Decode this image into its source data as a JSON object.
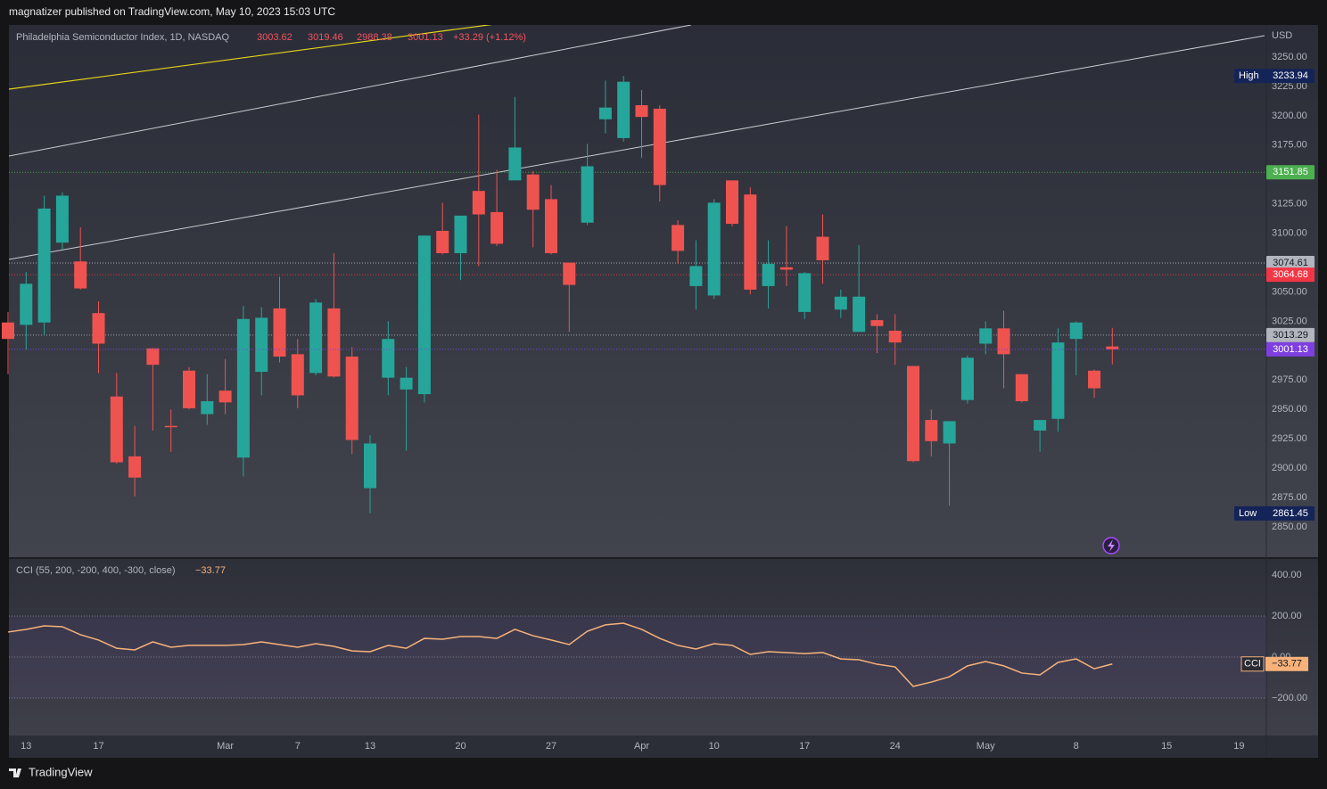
{
  "header": {
    "text": "magnatizer published on TradingView.com, May 10, 2023 15:03 UTC"
  },
  "chart_data": [
    {
      "type": "candlestick",
      "title": "Philadelphia Semiconductor Index, 1D, NASDAQ",
      "change_label": "+33.29 (+1.12%)",
      "currency": "USD",
      "categories": [
        null,
        "13",
        null,
        null,
        null,
        "17",
        null,
        null,
        null,
        null,
        null,
        null,
        "Mar",
        null,
        null,
        null,
        "7",
        null,
        null,
        null,
        "13",
        null,
        null,
        null,
        null,
        "20",
        null,
        null,
        null,
        null,
        "27",
        null,
        null,
        null,
        null,
        "Apr",
        null,
        null,
        null,
        "10",
        null,
        null,
        null,
        null,
        "17",
        null,
        null,
        null,
        null,
        "24",
        null,
        null,
        null,
        null,
        "May",
        null,
        null,
        null,
        null,
        "8",
        null,
        null,
        null,
        null,
        "15",
        null,
        null,
        null,
        "19"
      ],
      "open": [
        3024,
        3022,
        3024,
        3092,
        3076,
        3032,
        2961,
        2910,
        3002,
        2936,
        2983,
        2946,
        2966,
        2909,
        2982,
        3036,
        2997,
        2981,
        3036,
        2995,
        2883,
        2977,
        2967,
        2963,
        3102,
        3083,
        3136,
        3118,
        3145,
        3150,
        3129,
        3075,
        3109,
        3197,
        3181,
        3209,
        3206,
        3107,
        3055,
        3047,
        3145,
        3133,
        3055,
        3071,
        3033,
        3097,
        3035,
        3016,
        3026,
        3017,
        2987,
        2941,
        2921,
        2958,
        3006,
        3019,
        2980,
        2932,
        2942,
        3010,
        2983,
        3003.62,
        null,
        null,
        null,
        null,
        null,
        null,
        null
      ],
      "high": [
        3033,
        3067,
        3132,
        3135,
        3105,
        3042,
        2981,
        2936,
        3002,
        2950,
        2986,
        2980,
        2993,
        3038,
        3037,
        3063,
        3010,
        3044,
        3083,
        3003,
        2928,
        3025,
        2986,
        3098,
        3126,
        3115,
        3201,
        3154,
        3216,
        3153,
        3141,
        3075,
        3176,
        3230,
        3233.94,
        3222,
        3209,
        3111,
        3094,
        3129,
        3145,
        3139,
        3094,
        3106,
        3067,
        3116,
        3052,
        3090,
        3031,
        3031,
        2987,
        2950,
        2940,
        2996,
        3025,
        3034,
        2980,
        2941,
        3019,
        3025,
        2984,
        3019.46,
        null,
        null,
        null,
        null,
        null,
        null,
        null
      ],
      "low": [
        2980,
        3001,
        3013,
        3086,
        3052,
        2981,
        2904,
        2876,
        2932,
        2914,
        2950,
        2937,
        2946,
        2893,
        2962,
        2990,
        2951,
        2979,
        2977,
        2912,
        2861.45,
        2962,
        2915,
        2956,
        3082,
        3060,
        3072,
        3089,
        3145,
        3088,
        3082,
        3016,
        3107,
        3185,
        3178,
        3164,
        3127,
        3074,
        3035,
        3044,
        3106,
        3048,
        3036,
        3055,
        3027,
        3057,
        3028,
        3016,
        2998,
        2988,
        2905,
        2910,
        2868,
        2955,
        2997,
        2968,
        2956,
        2914,
        2931,
        2979,
        2960,
        2988.38,
        null,
        null,
        null,
        null,
        null,
        null,
        null
      ],
      "close": [
        3010,
        3057,
        3121,
        3132,
        3053,
        3006,
        2905,
        2892,
        2988,
        2935,
        2951,
        2957,
        2956,
        3027,
        3028,
        2995,
        2962,
        3041,
        2978,
        2924,
        2921,
        3010,
        2977,
        3098,
        3083,
        3115,
        3116,
        3091,
        3173,
        3120,
        3083,
        3056,
        3157,
        3207,
        3229,
        3199,
        3141,
        3085,
        3072,
        3126,
        3108,
        3052,
        3074,
        3069,
        3066,
        3077,
        3046,
        3046,
        3021,
        3007,
        2906,
        2923,
        2940,
        2994,
        3019,
        2997,
        2957,
        2941,
        3007,
        3024,
        2968,
        3001.13,
        null,
        null,
        null,
        null,
        null,
        null,
        null
      ],
      "up_color": "#26a69a",
      "down_color": "#ef5350",
      "high_label": "High",
      "low_label": "Low",
      "last_color": "#7e3fe0",
      "levels": [
        {
          "value": 3151.85,
          "color": "#4caf50",
          "text_color": "#ffffff"
        },
        {
          "value": 3074.61,
          "color": "#b2b5be",
          "text_color": "#131722"
        },
        {
          "value": 3064.68,
          "color": "#f23645",
          "text_color": "#ffffff"
        },
        {
          "value": 3013.29,
          "color": "#b2b5be",
          "text_color": "#131722"
        }
      ],
      "ylim": [
        2824.2,
        3277.3
      ],
      "yticks": [
        {
          "value": 3250,
          "label": "3250.00"
        },
        {
          "value": 3225,
          "label": "3225.00"
        },
        {
          "value": 3200,
          "label": "3200.00"
        },
        {
          "value": 3175,
          "label": "3175.00"
        },
        {
          "value": 3150,
          "label": "3150.00"
        },
        {
          "value": 3125,
          "label": "3125.00"
        },
        {
          "value": 3100,
          "label": "3100.00"
        },
        {
          "value": 3075,
          "label": "3075.00"
        },
        {
          "value": 3050,
          "label": "3050.00"
        },
        {
          "value": 3025,
          "label": "3025.00"
        },
        {
          "value": 3000,
          "label": "3000.00"
        },
        {
          "value": 2975,
          "label": "2975.00"
        },
        {
          "value": 2950,
          "label": "2950.00"
        },
        {
          "value": 2925,
          "label": "2925.00"
        },
        {
          "value": 2900,
          "label": "2900.00"
        },
        {
          "value": 2875,
          "label": "2875.00"
        },
        {
          "value": 2850,
          "label": "2850.00"
        }
      ],
      "grid": false
    },
    {
      "type": "line",
      "title": "CCI (55, 200, -200, 400, -300, close)",
      "name": "CCI",
      "color": "#f7b27a",
      "values": [
        122,
        135,
        152,
        148,
        109,
        83,
        43,
        35,
        74,
        48,
        57,
        57,
        57,
        61,
        74,
        61,
        48,
        65,
        52,
        30,
        26,
        57,
        43,
        91,
        87,
        100,
        100,
        91,
        135,
        104,
        83,
        61,
        126,
        157,
        165,
        135,
        91,
        57,
        39,
        65,
        57,
        13,
        26,
        22,
        17,
        22,
        -9,
        -13,
        -35,
        -48,
        -143,
        -122,
        -96,
        -43,
        -22,
        -43,
        -78,
        -87,
        -26,
        -9,
        -57,
        -33.77,
        null,
        null,
        null,
        null,
        null,
        null,
        null
      ],
      "value_labels": [
        null,
        null,
        null,
        null,
        null,
        null,
        null,
        null,
        null,
        null,
        null,
        null,
        null,
        null,
        null,
        null,
        null,
        null,
        null,
        null,
        null,
        null,
        null,
        null,
        null,
        null,
        null,
        null,
        null,
        null,
        null,
        null,
        null,
        null,
        null,
        null,
        null,
        null,
        null,
        null,
        null,
        null,
        null,
        null,
        null,
        null,
        null,
        null,
        null,
        null,
        null,
        null,
        null,
        null,
        null,
        null,
        null,
        null,
        null,
        null,
        null,
        "−33.77",
        null,
        null,
        null,
        null,
        null,
        null,
        null
      ],
      "hlines": [
        200,
        0,
        -200
      ],
      "ylim": [
        -382.6,
        473.9
      ],
      "yticks": [
        {
          "value": 400,
          "label": "400.00"
        },
        {
          "value": 200,
          "label": "200.00"
        },
        {
          "value": 0,
          "label": "0.00"
        },
        {
          "value": -200,
          "label": "−200.00"
        }
      ],
      "grid": false
    }
  ],
  "footer": {
    "brand": "TradingView"
  }
}
